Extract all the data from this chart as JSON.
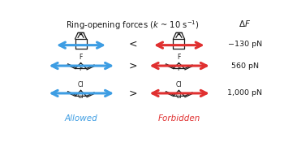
{
  "title": "Ring-opening forces ($k$ ~ 10 s$^{-1}$)",
  "dF_label": "$\\Delta F$",
  "allowed_label": "Allowed",
  "forbidden_label": "Forbidden",
  "comparison_symbols": [
    "<",
    ">",
    ">"
  ],
  "dF_values": [
    "−130 pN",
    "560 pN",
    "1,000 pN"
  ],
  "blue": "#3d9de3",
  "red": "#e03030",
  "black": "#1a1a1a",
  "bg": "#ffffff"
}
